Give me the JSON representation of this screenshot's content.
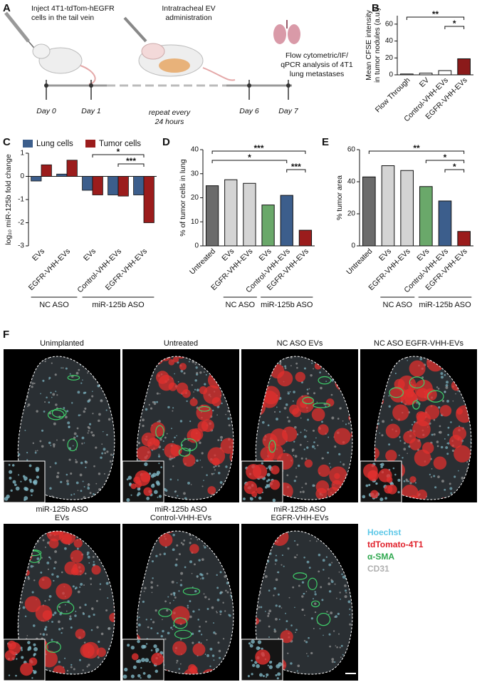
{
  "panel_labels": [
    "A",
    "B",
    "C",
    "D",
    "E",
    "F"
  ],
  "schematic": {
    "step1": [
      "Inject 4T1-tdTom-hEGFR",
      "cells in the tail vein"
    ],
    "step2": [
      "Intratracheal EV",
      "administration"
    ],
    "step3": [
      "Flow cytometric/IF/",
      "qPCR analysis of 4T1",
      "lung metastases"
    ],
    "days": [
      "Day 0",
      "Day 1",
      "Day 6",
      "Day 7"
    ],
    "repeat": [
      "repeat every",
      "24 hours"
    ]
  },
  "chart_data": [
    {
      "type": "bar",
      "ylabel": [
        "Mean CFSE intensity",
        "in tumor nodules (a.u.)"
      ],
      "categories": [
        "Flow Through",
        "EV",
        "Control-VHH-EVs",
        "EGFR-VHH-EVs"
      ],
      "values": [
        1,
        2,
        5,
        19
      ],
      "colors": [
        "#ffffff",
        "#ffffff",
        "#ffffff",
        "#8b1a1a"
      ],
      "ylim": [
        0,
        70
      ],
      "yticks": [
        0,
        20,
        40,
        60
      ],
      "annotations": [
        {
          "label": "**",
          "from": 0,
          "to": 3
        },
        {
          "label": "*",
          "from": 2,
          "to": 3
        }
      ]
    },
    {
      "type": "grouped_bar",
      "ylabel": [
        "log₁₀ miR-125b fold change"
      ],
      "categories": [
        "EVs",
        "EGFR-VHH-EVs",
        "EVs",
        "Control-VHH-EVs",
        "EGFR-VHH-EVs"
      ],
      "series": [
        {
          "name": "Lung cells",
          "color": "#3c5e8c",
          "values": [
            -0.2,
            0.1,
            -0.6,
            -0.8,
            -0.8
          ]
        },
        {
          "name": "Tumor cells",
          "color": "#9b1c1c",
          "values": [
            0.5,
            0.7,
            -0.8,
            -0.85,
            -2.0
          ]
        }
      ],
      "ylim": [
        -3,
        1
      ],
      "yticks": [
        -3,
        -2,
        -1,
        0,
        1
      ],
      "annotations": [
        {
          "label": "*",
          "from": 2,
          "to": 4
        },
        {
          "label": "***",
          "from": 3,
          "to": 4
        }
      ],
      "groups": [
        {
          "label": "NC ASO",
          "from": 0,
          "to": 1
        },
        {
          "label": "miR-125b ASO",
          "from": 2,
          "to": 4
        }
      ]
    },
    {
      "type": "bar",
      "ylabel": [
        "% of tumor cells in lung"
      ],
      "categories": [
        "Untreated",
        "EVs",
        "EGFR-VHH-EVs",
        "EVs",
        "Control-VHH-EVs",
        "EGFR-VHH-EVs"
      ],
      "values": [
        25,
        27.5,
        26,
        17,
        21,
        6.5
      ],
      "colors": [
        "#6b6b6b",
        "#d4d4d4",
        "#d4d4d4",
        "#6aa86a",
        "#3c5e8c",
        "#9b1c1c"
      ],
      "ylim": [
        0,
        40
      ],
      "yticks": [
        0,
        10,
        20,
        30,
        40
      ],
      "annotations": [
        {
          "label": "***",
          "from": 0,
          "to": 5
        },
        {
          "label": "*",
          "from": 0,
          "to": 4
        },
        {
          "label": "***",
          "from": 4,
          "to": 5
        }
      ],
      "groups": [
        {
          "label": "NC ASO",
          "from": 1,
          "to": 2
        },
        {
          "label": "miR-125b ASO",
          "from": 3,
          "to": 5
        }
      ]
    },
    {
      "type": "bar",
      "ylabel": [
        "% tumor area"
      ],
      "categories": [
        "Untreated",
        "EVs",
        "EGFR-VHH-EVs",
        "EVs",
        "Control-VHH-EVs",
        "EGFR-VHH-EVs"
      ],
      "values": [
        43,
        50,
        47,
        37,
        28,
        9
      ],
      "colors": [
        "#6b6b6b",
        "#d4d4d4",
        "#d4d4d4",
        "#6aa86a",
        "#3c5e8c",
        "#9b1c1c"
      ],
      "ylim": [
        0,
        60
      ],
      "yticks": [
        0,
        20,
        40,
        60
      ],
      "annotations": [
        {
          "label": "**",
          "from": 0,
          "to": 5
        },
        {
          "label": "*",
          "from": 3,
          "to": 5
        },
        {
          "label": "*",
          "from": 4,
          "to": 5
        }
      ],
      "groups": [
        {
          "label": "NC ASO",
          "from": 1,
          "to": 2
        },
        {
          "label": "miR-125b ASO",
          "from": 3,
          "to": 5
        }
      ]
    }
  ],
  "images": [
    {
      "title": [
        "Unimplanted"
      ]
    },
    {
      "title": [
        "Untreated"
      ]
    },
    {
      "title": [
        "NC ASO EVs"
      ]
    },
    {
      "title": [
        "NC ASO EGFR-VHH-EVs"
      ]
    },
    {
      "title": [
        "miR-125b ASO",
        "EVs"
      ]
    },
    {
      "title": [
        "miR-125b ASO",
        "Control-VHH-EVs"
      ]
    },
    {
      "title": [
        "miR-125b ASO",
        "EGFR-VHH-EVs"
      ]
    }
  ],
  "legend": [
    {
      "name": "Hoechst",
      "color": "#5ec8e8"
    },
    {
      "name": "tdTomato-4T1",
      "color": "#e0202a"
    },
    {
      "name": "α-SMA",
      "color": "#2fa84f"
    },
    {
      "name": "CD31",
      "color": "#b0b0b0"
    }
  ]
}
